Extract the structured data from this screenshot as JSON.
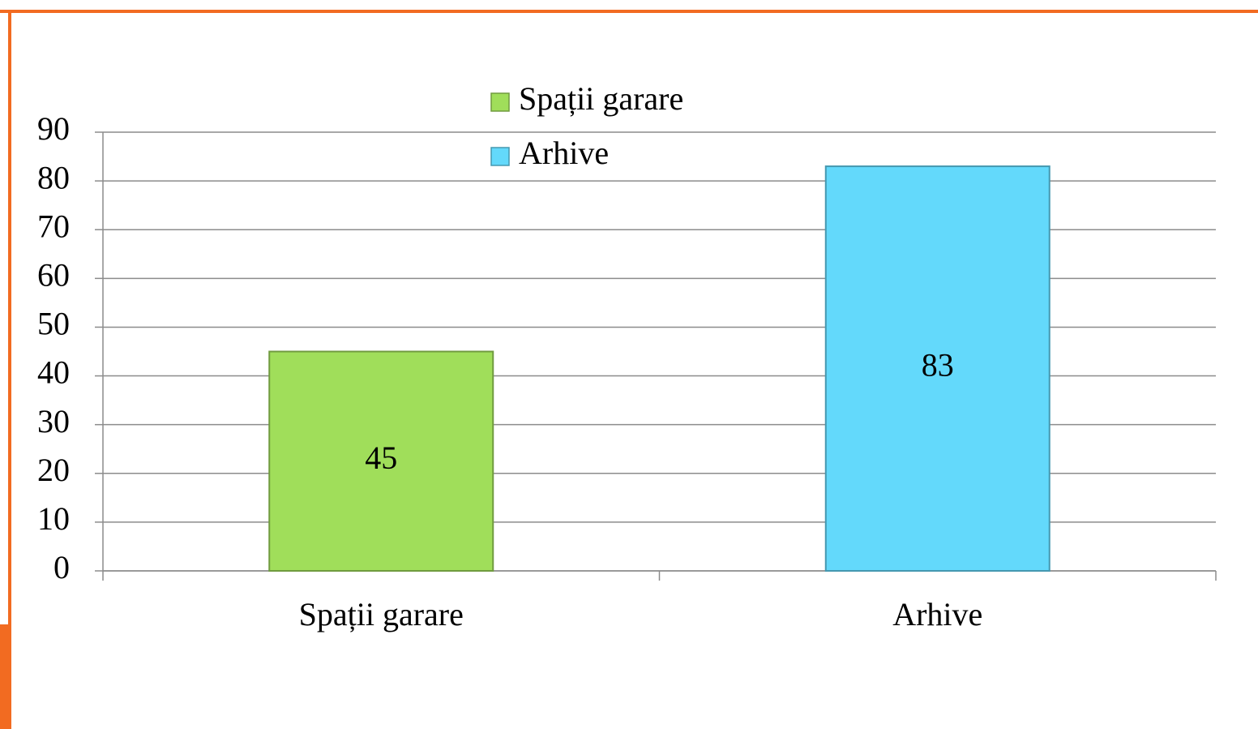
{
  "chart_data": {
    "type": "bar",
    "categories": [
      "Spații garare",
      "Arhive"
    ],
    "series": [
      {
        "name": "Spații garare",
        "color": "#a0de5a",
        "values": [
          45,
          null
        ]
      },
      {
        "name": "Arhive",
        "color": "#63d9fb",
        "values": [
          null,
          83
        ]
      }
    ],
    "ylim": [
      0,
      90
    ],
    "yticks": [
      0,
      10,
      20,
      30,
      40,
      50,
      60,
      70,
      80,
      90
    ],
    "grid": true,
    "legend": "top"
  }
}
